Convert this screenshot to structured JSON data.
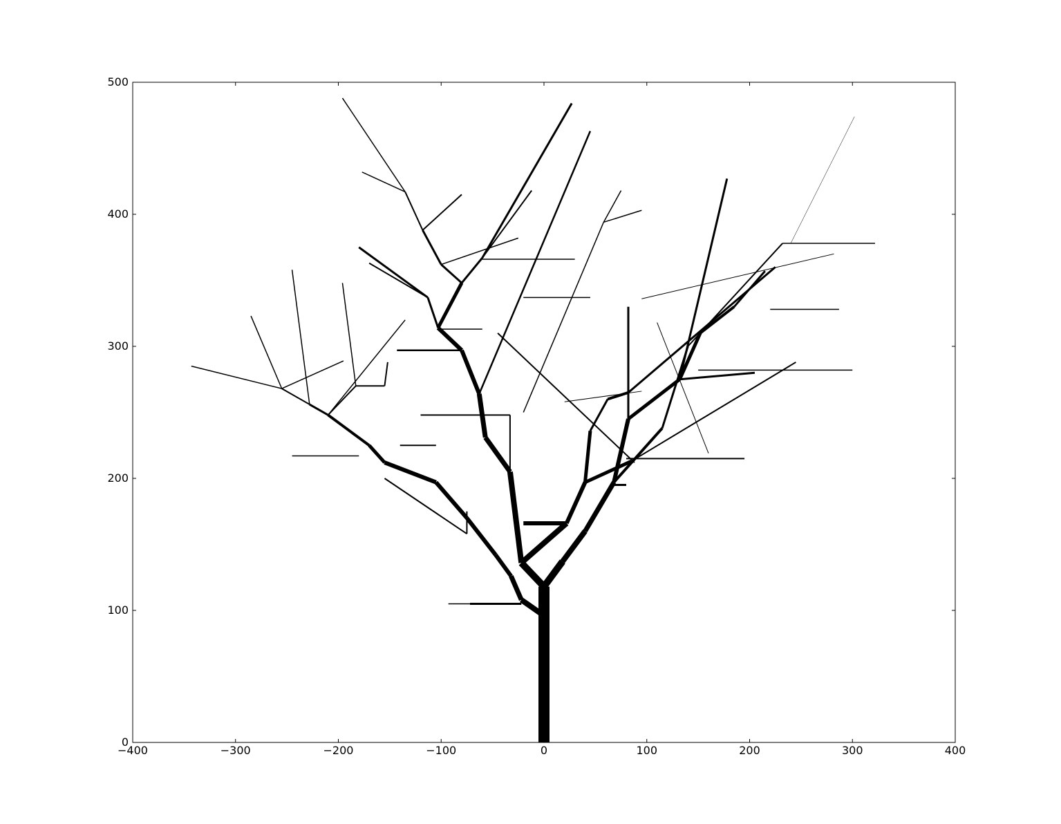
{
  "chart_data": {
    "type": "line",
    "title": "",
    "xlabel": "",
    "ylabel": "",
    "xlim": [
      -400,
      400
    ],
    "ylim": [
      0,
      500
    ],
    "grid": false,
    "line_color": "#000000",
    "x_ticks": [
      {
        "value": -400,
        "label": "−400"
      },
      {
        "value": -300,
        "label": "−300"
      },
      {
        "value": -200,
        "label": "−200"
      },
      {
        "value": -100,
        "label": "−100"
      },
      {
        "value": 0,
        "label": "0"
      },
      {
        "value": 100,
        "label": "100"
      },
      {
        "value": 200,
        "label": "200"
      },
      {
        "value": 300,
        "label": "300"
      },
      {
        "value": 400,
        "label": "400"
      }
    ],
    "y_ticks": [
      {
        "value": 0,
        "label": "0"
      },
      {
        "value": 100,
        "label": "100"
      },
      {
        "value": 200,
        "label": "200"
      },
      {
        "value": 300,
        "label": "300"
      },
      {
        "value": 400,
        "label": "400"
      },
      {
        "value": 500,
        "label": "500"
      }
    ],
    "segments": [
      {
        "x1": 0,
        "y1": 0,
        "x2": 0,
        "y2": 118,
        "width": 16
      },
      {
        "x1": 0,
        "y1": 96,
        "x2": -22,
        "y2": 108,
        "width": 8
      },
      {
        "x1": -22,
        "y1": 108,
        "x2": -32,
        "y2": 126,
        "width": 7
      },
      {
        "x1": -32,
        "y1": 126,
        "x2": -47,
        "y2": 142,
        "width": 6
      },
      {
        "x1": -47,
        "y1": 142,
        "x2": -75,
        "y2": 170,
        "width": 6
      },
      {
        "x1": -75,
        "y1": 170,
        "x2": -105,
        "y2": 197,
        "width": 6
      },
      {
        "x1": -105,
        "y1": 197,
        "x2": -155,
        "y2": 212,
        "width": 6
      },
      {
        "x1": -155,
        "y1": 212,
        "x2": -170,
        "y2": 225,
        "width": 5
      },
      {
        "x1": -170,
        "y1": 225,
        "x2": -210,
        "y2": 248,
        "width": 4
      },
      {
        "x1": -210,
        "y1": 248,
        "x2": -228,
        "y2": 256,
        "width": 3
      },
      {
        "x1": -228,
        "y1": 256,
        "x2": -255,
        "y2": 268,
        "width": 2
      },
      {
        "x1": -255,
        "y1": 268,
        "x2": -343,
        "y2": 285,
        "width": 1.5
      },
      {
        "x1": -255,
        "y1": 268,
        "x2": -285,
        "y2": 323,
        "width": 1.5
      },
      {
        "x1": -255,
        "y1": 268,
        "x2": -195,
        "y2": 289,
        "width": 1.5
      },
      {
        "x1": -228,
        "y1": 256,
        "x2": -245,
        "y2": 358,
        "width": 1.5
      },
      {
        "x1": -210,
        "y1": 248,
        "x2": -183,
        "y2": 270,
        "width": 2
      },
      {
        "x1": -183,
        "y1": 270,
        "x2": -196,
        "y2": 348,
        "width": 1.5
      },
      {
        "x1": -183,
        "y1": 270,
        "x2": -155,
        "y2": 270,
        "width": 2
      },
      {
        "x1": -155,
        "y1": 270,
        "x2": -152,
        "y2": 288,
        "width": 2
      },
      {
        "x1": -210,
        "y1": 248,
        "x2": -135,
        "y2": 320,
        "width": 1.5
      },
      {
        "x1": 0,
        "y1": 118,
        "x2": -22,
        "y2": 136,
        "width": 10
      },
      {
        "x1": -22,
        "y1": 136,
        "x2": -33,
        "y2": 205,
        "width": 8
      },
      {
        "x1": -33,
        "y1": 205,
        "x2": -57,
        "y2": 231,
        "width": 7
      },
      {
        "x1": -57,
        "y1": 231,
        "x2": -63,
        "y2": 264,
        "width": 7
      },
      {
        "x1": -63,
        "y1": 264,
        "x2": -80,
        "y2": 297,
        "width": 6
      },
      {
        "x1": -80,
        "y1": 297,
        "x2": -103,
        "y2": 314,
        "width": 6
      },
      {
        "x1": -103,
        "y1": 314,
        "x2": -80,
        "y2": 348,
        "width": 5
      },
      {
        "x1": -80,
        "y1": 348,
        "x2": -60,
        "y2": 367,
        "width": 3
      },
      {
        "x1": -60,
        "y1": 367,
        "x2": -12,
        "y2": 418,
        "width": 2
      },
      {
        "x1": -60,
        "y1": 367,
        "x2": 27,
        "y2": 484,
        "width": 3
      },
      {
        "x1": -103,
        "y1": 314,
        "x2": -113,
        "y2": 337,
        "width": 3
      },
      {
        "x1": -113,
        "y1": 337,
        "x2": -180,
        "y2": 375,
        "width": 3
      },
      {
        "x1": -113,
        "y1": 337,
        "x2": -170,
        "y2": 363,
        "width": 2
      },
      {
        "x1": -80,
        "y1": 348,
        "x2": -100,
        "y2": 362,
        "width": 3
      },
      {
        "x1": -100,
        "y1": 362,
        "x2": -118,
        "y2": 388,
        "width": 3
      },
      {
        "x1": -118,
        "y1": 388,
        "x2": -135,
        "y2": 417,
        "width": 2
      },
      {
        "x1": -135,
        "y1": 417,
        "x2": -196,
        "y2": 488,
        "width": 1.5
      },
      {
        "x1": -135,
        "y1": 417,
        "x2": -177,
        "y2": 432,
        "width": 1.5
      },
      {
        "x1": -118,
        "y1": 388,
        "x2": -80,
        "y2": 415,
        "width": 2
      },
      {
        "x1": -100,
        "y1": 362,
        "x2": -25,
        "y2": 382,
        "width": 1.5
      },
      {
        "x1": -80,
        "y1": 297,
        "x2": -143,
        "y2": 297,
        "width": 2.5
      },
      {
        "x1": -63,
        "y1": 264,
        "x2": 45,
        "y2": 463,
        "width": 2.5
      },
      {
        "x1": -22,
        "y1": 136,
        "x2": 22,
        "y2": 166,
        "width": 8
      },
      {
        "x1": 22,
        "y1": 166,
        "x2": -20,
        "y2": 166,
        "width": 6
      },
      {
        "x1": 22,
        "y1": 166,
        "x2": 40,
        "y2": 197,
        "width": 6
      },
      {
        "x1": 40,
        "y1": 197,
        "x2": 45,
        "y2": 236,
        "width": 5
      },
      {
        "x1": 45,
        "y1": 236,
        "x2": 62,
        "y2": 260,
        "width": 3
      },
      {
        "x1": 62,
        "y1": 260,
        "x2": 82,
        "y2": 265,
        "width": 4
      },
      {
        "x1": 40,
        "y1": 197,
        "x2": 85,
        "y2": 213,
        "width": 5
      },
      {
        "x1": 0,
        "y1": 118,
        "x2": 18,
        "y2": 137,
        "width": 10
      },
      {
        "x1": 18,
        "y1": 137,
        "x2": 40,
        "y2": 160,
        "width": 8
      },
      {
        "x1": 40,
        "y1": 160,
        "x2": 68,
        "y2": 197,
        "width": 7
      },
      {
        "x1": 68,
        "y1": 197,
        "x2": 82,
        "y2": 245,
        "width": 6
      },
      {
        "x1": 82,
        "y1": 245,
        "x2": 82,
        "y2": 330,
        "width": 3
      },
      {
        "x1": 82,
        "y1": 245,
        "x2": 132,
        "y2": 275,
        "width": 5
      },
      {
        "x1": 132,
        "y1": 275,
        "x2": 152,
        "y2": 310,
        "width": 5
      },
      {
        "x1": 152,
        "y1": 310,
        "x2": 185,
        "y2": 330,
        "width": 4
      },
      {
        "x1": 185,
        "y1": 330,
        "x2": 215,
        "y2": 357,
        "width": 3
      },
      {
        "x1": 132,
        "y1": 275,
        "x2": 178,
        "y2": 427,
        "width": 3
      },
      {
        "x1": 68,
        "y1": 197,
        "x2": 115,
        "y2": 238,
        "width": 4
      },
      {
        "x1": 115,
        "y1": 238,
        "x2": 140,
        "y2": 300,
        "width": 3
      },
      {
        "x1": 140,
        "y1": 300,
        "x2": 232,
        "y2": 378,
        "width": 2
      },
      {
        "x1": 132,
        "y1": 275,
        "x2": 205,
        "y2": 280,
        "width": 3
      },
      {
        "x1": 85,
        "y1": 213,
        "x2": 245,
        "y2": 288,
        "width": 2
      },
      {
        "x1": 82,
        "y1": 265,
        "x2": 225,
        "y2": 360,
        "width": 3
      },
      {
        "x1": -155,
        "y1": 200,
        "x2": -75,
        "y2": 158,
        "width": 2
      },
      {
        "x1": -75,
        "y1": 158,
        "x2": -75,
        "y2": 175,
        "width": 2
      },
      {
        "x1": -245,
        "y1": 217,
        "x2": -180,
        "y2": 217,
        "width": 1.5
      },
      {
        "x1": -140,
        "y1": 225,
        "x2": -105,
        "y2": 225,
        "width": 2
      },
      {
        "x1": -33,
        "y1": 248,
        "x2": -33,
        "y2": 205,
        "width": 2
      },
      {
        "x1": -120,
        "y1": 248,
        "x2": -33,
        "y2": 248,
        "width": 2
      },
      {
        "x1": -72,
        "y1": 105,
        "x2": -22,
        "y2": 105,
        "width": 3
      },
      {
        "x1": -93,
        "y1": 105,
        "x2": -72,
        "y2": 105,
        "width": 1.5
      },
      {
        "x1": 45,
        "y1": 337,
        "x2": -20,
        "y2": 337,
        "width": 1.5
      },
      {
        "x1": 30,
        "y1": 366,
        "x2": -60,
        "y2": 366,
        "width": 1.5
      },
      {
        "x1": -100,
        "y1": 313,
        "x2": -60,
        "y2": 313,
        "width": 1.5
      },
      {
        "x1": 80,
        "y1": 215,
        "x2": 195,
        "y2": 215,
        "width": 2
      },
      {
        "x1": 150,
        "y1": 282,
        "x2": 300,
        "y2": 282,
        "width": 1.5
      },
      {
        "x1": 232,
        "y1": 378,
        "x2": 322,
        "y2": 378,
        "width": 1.5
      },
      {
        "x1": 220,
        "y1": 328,
        "x2": 287,
        "y2": 328,
        "width": 1.5
      },
      {
        "x1": 240,
        "y1": 378,
        "x2": 302,
        "y2": 474,
        "width": 0.5
      },
      {
        "x1": -45,
        "y1": 310,
        "x2": 88,
        "y2": 212,
        "width": 2
      },
      {
        "x1": 20,
        "y1": 258,
        "x2": 95,
        "y2": 266,
        "width": 1
      },
      {
        "x1": 80,
        "y1": 195,
        "x2": 65,
        "y2": 195,
        "width": 3
      },
      {
        "x1": 110,
        "y1": 318,
        "x2": 160,
        "y2": 219,
        "width": 1
      },
      {
        "x1": 95,
        "y1": 336,
        "x2": 282,
        "y2": 370,
        "width": 1
      },
      {
        "x1": 58,
        "y1": 394,
        "x2": 95,
        "y2": 403,
        "width": 1.5
      },
      {
        "x1": -20,
        "y1": 250,
        "x2": 58,
        "y2": 394,
        "width": 1.5
      },
      {
        "x1": 58,
        "y1": 394,
        "x2": 75,
        "y2": 418,
        "width": 1.5
      }
    ]
  }
}
